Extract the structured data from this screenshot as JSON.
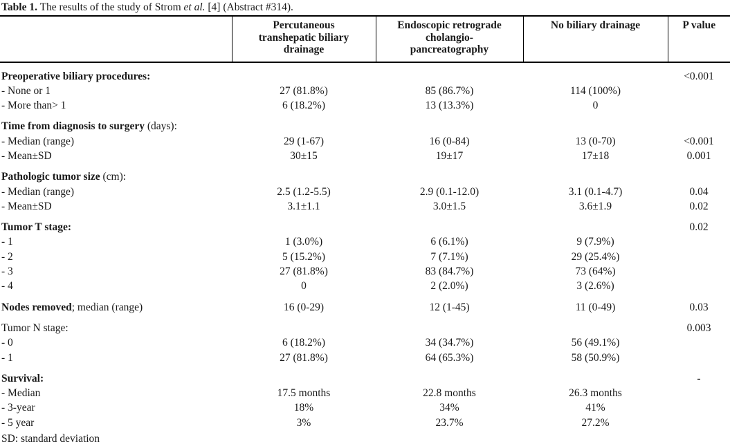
{
  "caption": {
    "label": "Table 1.",
    "text_before_italic": " The results of the study of Strom ",
    "italic": "et al.",
    "text_after_italic": " [4] (Abstract #314)."
  },
  "table": {
    "columns": [
      "Percutaneous\ntranshepatic biliary\ndrainage",
      "Endoscopic retrograde\ncholangio-\npancreatography",
      "No biliary drainage",
      "P value"
    ],
    "rows": [
      {
        "section": true,
        "bold": "Preoperative biliary procedures:",
        "regular": "",
        "values": [
          "",
          "",
          ""
        ],
        "p": "<0.001"
      },
      {
        "section": false,
        "bold": "",
        "regular": "- None or 1",
        "values": [
          "27 (81.8%)",
          "85 (86.7%)",
          "114 (100%)"
        ],
        "p": ""
      },
      {
        "section": false,
        "bold": "",
        "regular": "- More than> 1",
        "values": [
          "6 (18.2%)",
          "13 (13.3%)",
          "0"
        ],
        "p": ""
      },
      {
        "section": true,
        "bold": "Time from diagnosis to surgery",
        "regular": " (days):",
        "values": [
          "",
          "",
          ""
        ],
        "p": ""
      },
      {
        "section": false,
        "bold": "",
        "regular": "- Median (range)",
        "values": [
          "29 (1-67)",
          "16 (0-84)",
          "13 (0-70)"
        ],
        "p": "<0.001"
      },
      {
        "section": false,
        "bold": "",
        "regular": "- Mean±SD",
        "values": [
          "30±15",
          "19±17",
          "17±18"
        ],
        "p": "0.001"
      },
      {
        "section": true,
        "bold": "Pathologic tumor size",
        "regular": " (cm):",
        "values": [
          "",
          "",
          ""
        ],
        "p": ""
      },
      {
        "section": false,
        "bold": "",
        "regular": "- Median (range)",
        "values": [
          "2.5 (1.2-5.5)",
          "2.9 (0.1-12.0)",
          "3.1 (0.1-4.7)"
        ],
        "p": "0.04"
      },
      {
        "section": false,
        "bold": "",
        "regular": "- Mean±SD",
        "values": [
          "3.1±1.1",
          "3.0±1.5",
          "3.6±1.9"
        ],
        "p": "0.02"
      },
      {
        "section": true,
        "bold": "Tumor T stage:",
        "regular": "",
        "values": [
          "",
          "",
          ""
        ],
        "p": "0.02"
      },
      {
        "section": false,
        "bold": "",
        "regular": "- 1",
        "values": [
          "1 (3.0%)",
          "6 (6.1%)",
          "9 (7.9%)"
        ],
        "p": ""
      },
      {
        "section": false,
        "bold": "",
        "regular": "- 2",
        "values": [
          "5 (15.2%)",
          "7 (7.1%)",
          "29 (25.4%)"
        ],
        "p": ""
      },
      {
        "section": false,
        "bold": "",
        "regular": "- 3",
        "values": [
          "27 (81.8%)",
          "83 (84.7%)",
          "73 (64%)"
        ],
        "p": ""
      },
      {
        "section": false,
        "bold": "",
        "regular": "- 4",
        "values": [
          "0",
          "2 (2.0%)",
          "3 (2.6%)"
        ],
        "p": ""
      },
      {
        "section": true,
        "bold": "Nodes removed",
        "regular": "; median (range)",
        "values": [
          "16 (0-29)",
          "12 (1-45)",
          "11 (0-49)"
        ],
        "p": "0.03"
      },
      {
        "section": true,
        "bold": "",
        "regular": "Tumor N stage:",
        "values": [
          "",
          "",
          ""
        ],
        "p": "0.003"
      },
      {
        "section": false,
        "bold": "",
        "regular": "- 0",
        "values": [
          "6 (18.2%)",
          "34 (34.7%)",
          "56 (49.1%)"
        ],
        "p": ""
      },
      {
        "section": false,
        "bold": "",
        "regular": "- 1",
        "values": [
          "27 (81.8%)",
          "64 (65.3%)",
          "58 (50.9%)"
        ],
        "p": ""
      },
      {
        "section": true,
        "bold": "Survival:",
        "regular": "",
        "values": [
          "",
          "",
          ""
        ],
        "p": "-"
      },
      {
        "section": false,
        "bold": "",
        "regular": "- Median",
        "values": [
          "17.5 months",
          "22.8 months",
          "26.3 months"
        ],
        "p": ""
      },
      {
        "section": false,
        "bold": "",
        "regular": "- 3-year",
        "values": [
          "18%",
          "34%",
          "41%"
        ],
        "p": ""
      },
      {
        "section": false,
        "bold": "",
        "regular": "- 5 year",
        "values": [
          "3%",
          "23.7%",
          "27.2%"
        ],
        "p": ""
      }
    ]
  },
  "footnote": "SD: standard deviation",
  "colors": {
    "background": "#ffffff",
    "text": "#1a1a1a",
    "rule": "#000000"
  }
}
